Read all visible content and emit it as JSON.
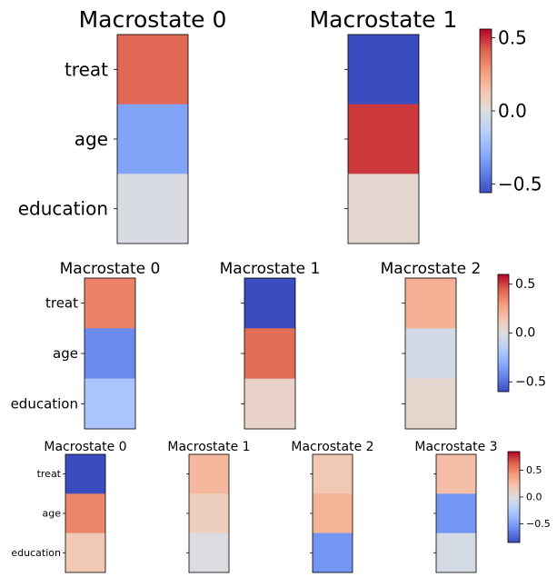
{
  "figure": {
    "colormap": "coolwarm",
    "row_labels": [
      "treat",
      "age",
      "education"
    ]
  },
  "chart_data": [
    {
      "type": "heatmap",
      "title": "",
      "rows": [
        "treat",
        "age",
        "education"
      ],
      "panels": [
        {
          "title": "Macrostate 0",
          "values": [
            0.4,
            -0.32,
            -0.02
          ]
        },
        {
          "title": "Macrostate 1",
          "values": [
            -0.56,
            0.48,
            0.04
          ]
        }
      ],
      "colorbar": {
        "min": -0.56,
        "max": 0.56,
        "ticks": [
          0.5,
          0.0,
          -0.5
        ],
        "tick_labels": [
          "0.5",
          "0.0",
          "−0.5"
        ]
      }
    },
    {
      "type": "heatmap",
      "title": "",
      "rows": [
        "treat",
        "age",
        "education"
      ],
      "panels": [
        {
          "title": "Macrostate 0",
          "values": [
            0.36,
            -0.42,
            -0.2
          ]
        },
        {
          "title": "Macrostate 1",
          "values": [
            -0.6,
            0.42,
            0.07
          ]
        },
        {
          "title": "Macrostate 2",
          "values": [
            0.22,
            -0.05,
            0.05
          ]
        }
      ],
      "colorbar": {
        "min": -0.6,
        "max": 0.6,
        "ticks": [
          0.5,
          0.0,
          -0.5
        ],
        "tick_labels": [
          "0.5",
          "0.0",
          "−0.5"
        ]
      }
    },
    {
      "type": "heatmap",
      "title": "",
      "rows": [
        "treat",
        "age",
        "education"
      ],
      "panels": [
        {
          "title": "Macrostate 0",
          "values": [
            -0.85,
            0.5,
            0.18
          ]
        },
        {
          "title": "Macrostate 1",
          "values": [
            0.28,
            0.14,
            -0.02
          ]
        },
        {
          "title": "Macrostate 2",
          "values": [
            0.18,
            0.3,
            -0.55
          ]
        },
        {
          "title": "Macrostate 3",
          "values": [
            0.24,
            -0.55,
            -0.05
          ]
        }
      ],
      "colorbar": {
        "min": -0.85,
        "max": 0.85,
        "ticks": [
          0.5,
          0.0,
          -0.5
        ],
        "tick_labels": [
          "0.5",
          "0.0",
          "−0.5"
        ]
      }
    }
  ]
}
